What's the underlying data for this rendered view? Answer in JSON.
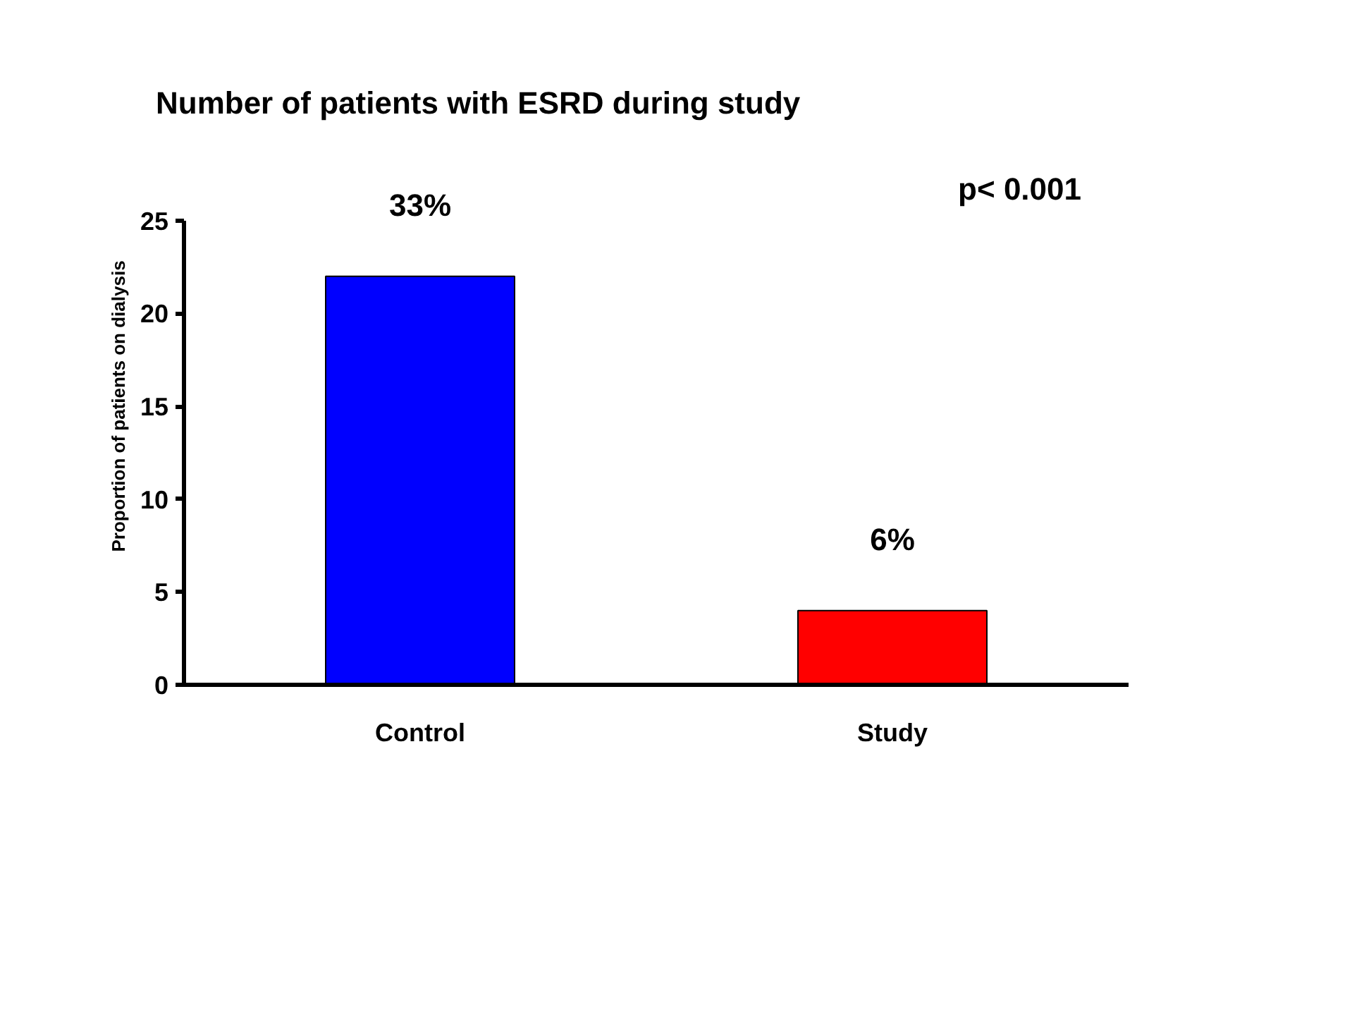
{
  "chart_data": {
    "type": "bar",
    "title": "Number of patients with ESRD during study",
    "ylabel": "Proportion of patients on dialysis",
    "categories": [
      "Control",
      "Study"
    ],
    "values": [
      22,
      4
    ],
    "colors": [
      "#0000ff",
      "#ff0000"
    ],
    "ylim": [
      0,
      25
    ],
    "yticks": [
      0,
      5,
      10,
      15,
      20,
      25
    ],
    "grid": false,
    "annotations": [
      {
        "text": "33%",
        "x": "Control",
        "y": 22
      },
      {
        "text": "6%",
        "x": "Study",
        "y": 4
      },
      "p< 0.001"
    ]
  }
}
